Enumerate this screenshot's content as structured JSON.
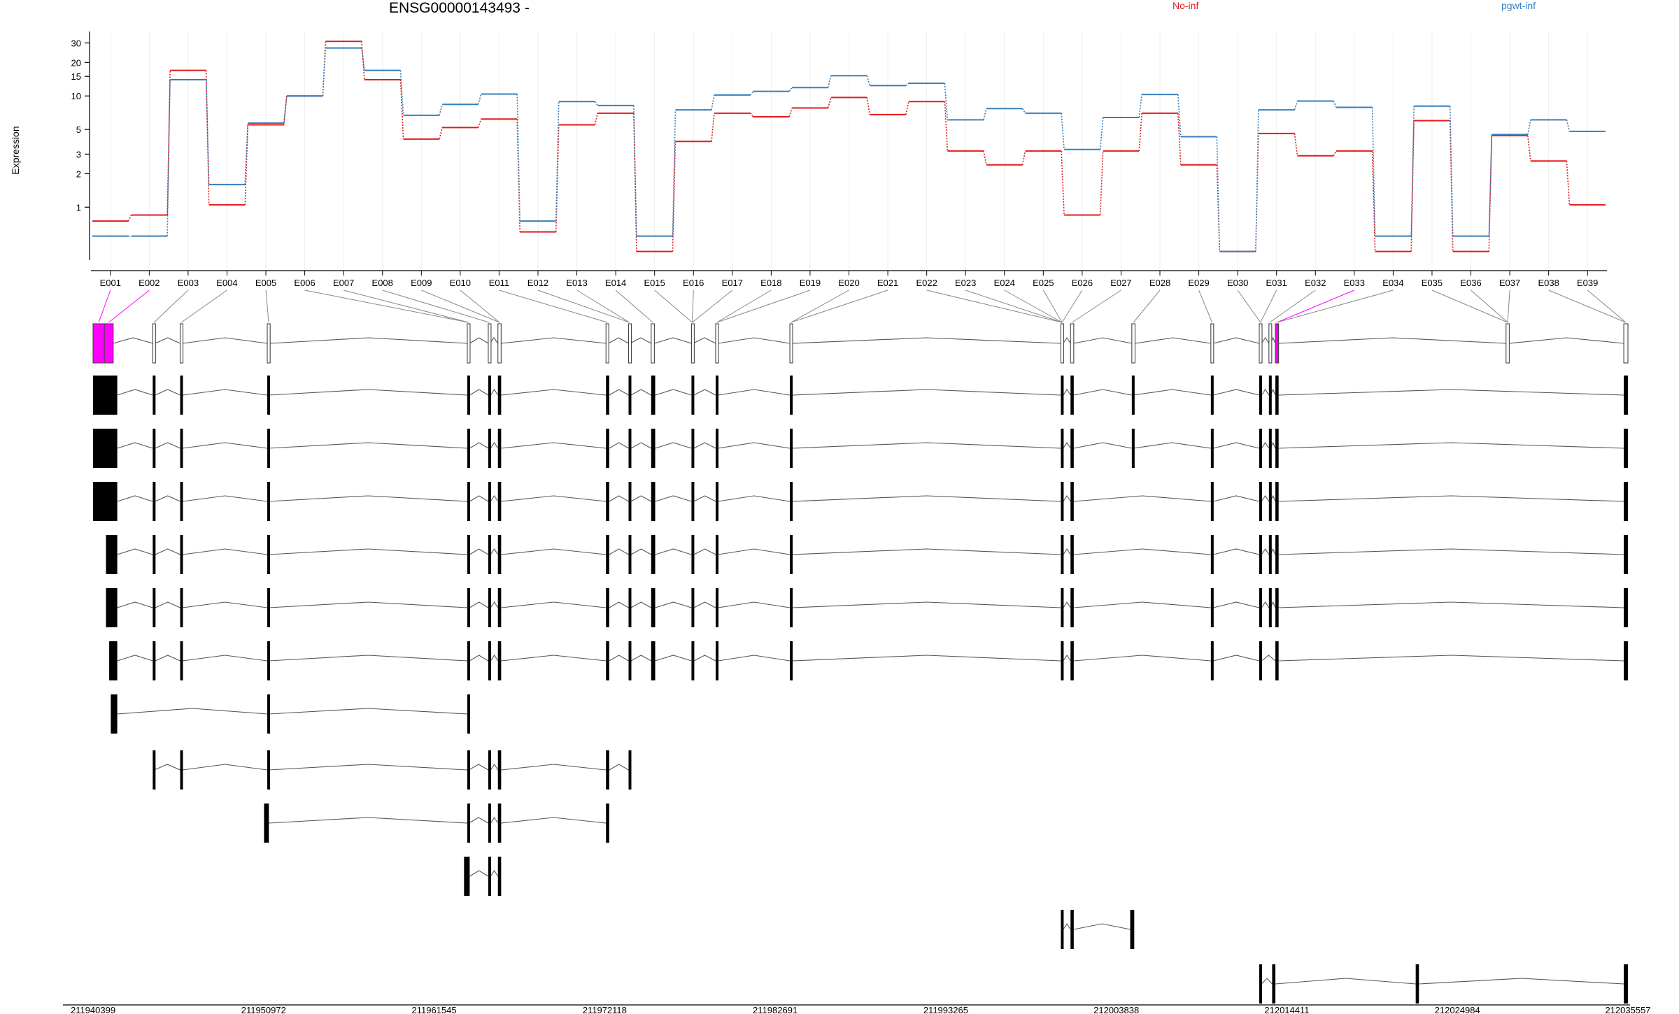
{
  "chart_data": {
    "type": "line",
    "title": "ENSG00000143493 -",
    "xlabel": "",
    "ylabel": "Expression",
    "y_scale": "log",
    "y_ticks": [
      1,
      2,
      3,
      5,
      10,
      15,
      20,
      30
    ],
    "grid": "vertical per exon",
    "legend_placement": "top",
    "categories": [
      "E001",
      "E002",
      "E003",
      "E004",
      "E005",
      "E006",
      "E007",
      "E008",
      "E009",
      "E010",
      "E011",
      "E012",
      "E013",
      "E014",
      "E015",
      "E016",
      "E017",
      "E018",
      "E019",
      "E020",
      "E021",
      "E022",
      "E023",
      "E024",
      "E025",
      "E026",
      "E027",
      "E028",
      "E029",
      "E030",
      "E031",
      "E032",
      "E033",
      "E034",
      "E035",
      "E036",
      "E037",
      "E038",
      "E039"
    ],
    "series": [
      {
        "name": "No-inf",
        "color": "#e41a1c",
        "values": [
          0.75,
          0.85,
          17,
          1.05,
          5.5,
          10,
          31,
          14,
          4.1,
          5.2,
          6.2,
          0.6,
          5.5,
          7,
          0.4,
          3.9,
          7,
          6.5,
          7.8,
          9.7,
          6.8,
          8.9,
          3.2,
          2.4,
          3.2,
          0.85,
          3.2,
          7,
          2.4,
          0.4,
          4.6,
          2.9,
          3.2,
          0.4,
          6,
          0.4,
          4.4,
          2.6,
          1.05
        ]
      },
      {
        "name": "pgwt-inf",
        "color": "#377eb8",
        "values": [
          0.55,
          0.55,
          14,
          1.6,
          5.7,
          10,
          27,
          17,
          6.7,
          8.4,
          10.4,
          0.75,
          8.9,
          8.2,
          0.55,
          7.5,
          10.2,
          11,
          11.9,
          15.2,
          12.4,
          13,
          6.1,
          7.7,
          7,
          3.3,
          6.4,
          10.3,
          4.3,
          0.4,
          7.5,
          9,
          7.9,
          0.55,
          8.1,
          0.55,
          4.5,
          6.1,
          4.8
        ]
      }
    ],
    "genomic_ticks": [
      "211940399",
      "211950972",
      "211961545",
      "211972118",
      "211982691",
      "211993265",
      "212003838",
      "212014411",
      "212024984",
      "212035557"
    ],
    "genomic_range": [
      211940399,
      212035557
    ],
    "highlight_color": "#ff00ff",
    "exon_highlighted": [
      "E001",
      "E002",
      "E033"
    ],
    "gene_model_exons": [
      [
        211940399,
        211941100
      ],
      [
        211941100,
        211941650
      ],
      [
        211944100,
        211944250
      ],
      [
        211945800,
        211945950
      ],
      [
        211951200,
        211951380
      ],
      [
        211963600,
        211963750
      ],
      [
        211964900,
        211965000
      ],
      [
        211965500,
        211965700
      ],
      [
        211972200,
        211972350
      ],
      [
        211973600,
        211973700
      ],
      [
        211975000,
        211975200
      ],
      [
        211977500,
        211977600
      ],
      [
        211979000,
        211979150
      ],
      [
        211983600,
        211983750
      ],
      [
        212000400,
        212000550
      ],
      [
        212001000,
        212001200
      ],
      [
        212004800,
        212005000
      ],
      [
        212009700,
        212009850
      ],
      [
        212012700,
        212012850
      ],
      [
        212013300,
        212013400
      ],
      [
        212013700,
        212013900
      ],
      [
        212028000,
        212028200
      ],
      [
        212035300,
        212035557
      ]
    ],
    "transcripts": [
      {
        "exons": [
          [
            211940399,
            211941900
          ],
          [
            211944100,
            211944250
          ],
          [
            211945800,
            211945950
          ],
          [
            211951200,
            211951300
          ],
          [
            211963600,
            211963750
          ],
          [
            211964900,
            211965050
          ],
          [
            211965500,
            211965700
          ],
          [
            211972200,
            211972400
          ],
          [
            211973600,
            211973750
          ],
          [
            211975000,
            211975250
          ],
          [
            211977500,
            211977650
          ],
          [
            211979000,
            211979150
          ],
          [
            211983600,
            211983750
          ],
          [
            212000400,
            212000550
          ],
          [
            212001000,
            212001200
          ],
          [
            212004800,
            212004900
          ],
          [
            212009700,
            212009850
          ],
          [
            212012700,
            212012850
          ],
          [
            212013300,
            212013400
          ],
          [
            212013700,
            212013900
          ],
          [
            212035300,
            212035557
          ]
        ]
      },
      {
        "exons": [
          [
            211940399,
            211941900
          ],
          [
            211944100,
            211944250
          ],
          [
            211945800,
            211945950
          ],
          [
            211951200,
            211951300
          ],
          [
            211963600,
            211963750
          ],
          [
            211964900,
            211965050
          ],
          [
            211965500,
            211965700
          ],
          [
            211972200,
            211972400
          ],
          [
            211973600,
            211973750
          ],
          [
            211975000,
            211975250
          ],
          [
            211977500,
            211977650
          ],
          [
            211979000,
            211979150
          ],
          [
            211983600,
            211983750
          ],
          [
            212000400,
            212000550
          ],
          [
            212001000,
            212001200
          ],
          [
            212004800,
            212004900
          ],
          [
            212009700,
            212009850
          ],
          [
            212012700,
            212012850
          ],
          [
            212013300,
            212013400
          ],
          [
            212013700,
            212013900
          ],
          [
            212035300,
            212035557
          ]
        ]
      },
      {
        "exons": [
          [
            211940399,
            211941900
          ],
          [
            211944100,
            211944250
          ],
          [
            211945800,
            211945950
          ],
          [
            211951200,
            211951300
          ],
          [
            211963600,
            211963750
          ],
          [
            211964900,
            211965050
          ],
          [
            211965500,
            211965700
          ],
          [
            211972200,
            211972400
          ],
          [
            211973600,
            211973750
          ],
          [
            211975000,
            211975250
          ],
          [
            211977500,
            211977650
          ],
          [
            211979000,
            211979150
          ],
          [
            211983600,
            211983750
          ],
          [
            212000400,
            212000550
          ],
          [
            212001000,
            212001200
          ],
          [
            212009700,
            212009850
          ],
          [
            212012700,
            212012850
          ],
          [
            212013300,
            212013400
          ],
          [
            212013700,
            212013900
          ],
          [
            212035300,
            212035557
          ]
        ]
      },
      {
        "exons": [
          [
            211941200,
            211941900
          ],
          [
            211944100,
            211944250
          ],
          [
            211945800,
            211945950
          ],
          [
            211951200,
            211951300
          ],
          [
            211963600,
            211963750
          ],
          [
            211964900,
            211965050
          ],
          [
            211965500,
            211965700
          ],
          [
            211972200,
            211972400
          ],
          [
            211973600,
            211973750
          ],
          [
            211975000,
            211975250
          ],
          [
            211977500,
            211977650
          ],
          [
            211979000,
            211979150
          ],
          [
            211983600,
            211983750
          ],
          [
            212000400,
            212000550
          ],
          [
            212001000,
            212001200
          ],
          [
            212009700,
            212009850
          ],
          [
            212012700,
            212012850
          ],
          [
            212013300,
            212013400
          ],
          [
            212013700,
            212013900
          ],
          [
            212035300,
            212035557
          ]
        ]
      },
      {
        "exons": [
          [
            211941200,
            211941900
          ],
          [
            211944100,
            211944250
          ],
          [
            211945800,
            211945950
          ],
          [
            211951200,
            211951300
          ],
          [
            211963600,
            211963750
          ],
          [
            211964900,
            211965050
          ],
          [
            211965500,
            211965700
          ],
          [
            211972200,
            211972400
          ],
          [
            211973600,
            211973750
          ],
          [
            211975000,
            211975250
          ],
          [
            211977500,
            211977650
          ],
          [
            211979000,
            211979150
          ],
          [
            211983600,
            211983750
          ],
          [
            212000400,
            212000550
          ],
          [
            212001000,
            212001200
          ],
          [
            212009700,
            212009850
          ],
          [
            212012700,
            212012850
          ],
          [
            212013300,
            212013400
          ],
          [
            212013700,
            212013900
          ],
          [
            212035300,
            212035557
          ]
        ]
      },
      {
        "exons": [
          [
            211941400,
            211941900
          ],
          [
            211944100,
            211944250
          ],
          [
            211945800,
            211945950
          ],
          [
            211951200,
            211951300
          ],
          [
            211963600,
            211963750
          ],
          [
            211964900,
            211965050
          ],
          [
            211965500,
            211965700
          ],
          [
            211972200,
            211972400
          ],
          [
            211973600,
            211973750
          ],
          [
            211975000,
            211975250
          ],
          [
            211977500,
            211977650
          ],
          [
            211979000,
            211979150
          ],
          [
            211983600,
            211983750
          ],
          [
            212000400,
            212000550
          ],
          [
            212001000,
            212001200
          ],
          [
            212009700,
            212009850
          ],
          [
            212012700,
            212012850
          ],
          [
            212013700,
            212013900
          ],
          [
            212035300,
            212035557
          ]
        ]
      },
      {
        "exons": [
          [
            211941500,
            211941900
          ],
          [
            211951200,
            211951300
          ],
          [
            211963600,
            211963700
          ]
        ]
      },
      {
        "exons": [
          [
            211944100,
            211944200
          ],
          [
            211945800,
            211945950
          ],
          [
            211951200,
            211951300
          ],
          [
            211963600,
            211963700
          ],
          [
            211964900,
            211965050
          ],
          [
            211965500,
            211965700
          ],
          [
            211972200,
            211972400
          ],
          [
            211973600,
            211973750
          ]
        ]
      },
      {
        "exons": [
          [
            211951000,
            211951300
          ],
          [
            211963600,
            211963700
          ],
          [
            211964900,
            211965050
          ],
          [
            211965500,
            211965700
          ],
          [
            211972200,
            211972400
          ]
        ]
      },
      {
        "exons": [
          [
            211963400,
            211963750
          ],
          [
            211964900,
            211965050
          ],
          [
            211965500,
            211965700
          ]
        ]
      },
      {
        "exons": [
          [
            212000400,
            212000550
          ],
          [
            212001000,
            212001200
          ],
          [
            212004700,
            212004950
          ]
        ]
      },
      {
        "exons": [
          [
            212012700,
            212012850
          ],
          [
            212013500,
            212013700
          ],
          [
            212022400,
            212022600
          ],
          [
            212035300,
            212035557
          ]
        ]
      }
    ]
  }
}
